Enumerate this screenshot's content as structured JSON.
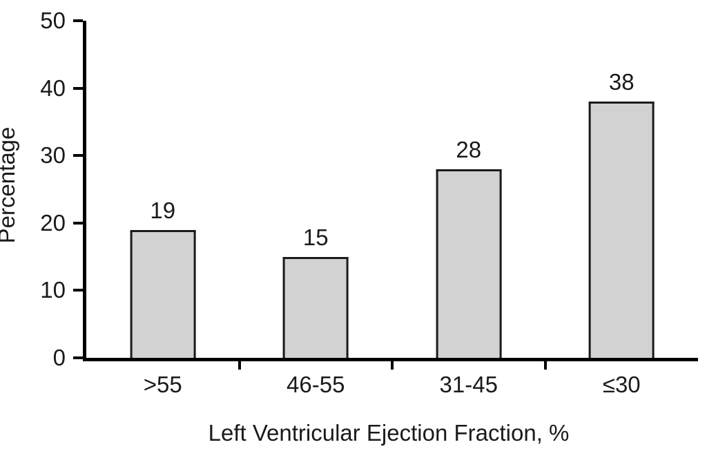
{
  "chart_data": {
    "type": "bar",
    "categories": [
      ">55",
      "46-55",
      "31-45",
      "≤30"
    ],
    "values": [
      19,
      15,
      28,
      38
    ],
    "xlabel": "Left Ventricular Ejection Fraction, %",
    "ylabel": "Percentage",
    "ylim": [
      0,
      50
    ],
    "yticks": [
      0,
      10,
      20,
      30,
      40,
      50
    ],
    "grid": false,
    "legend": "none",
    "bar_fill": "#d2d2d2",
    "bar_border": "#1a1a1a",
    "axis_color": "#000000",
    "background": "#ffffff",
    "bar_width_pct": 10.7
  }
}
